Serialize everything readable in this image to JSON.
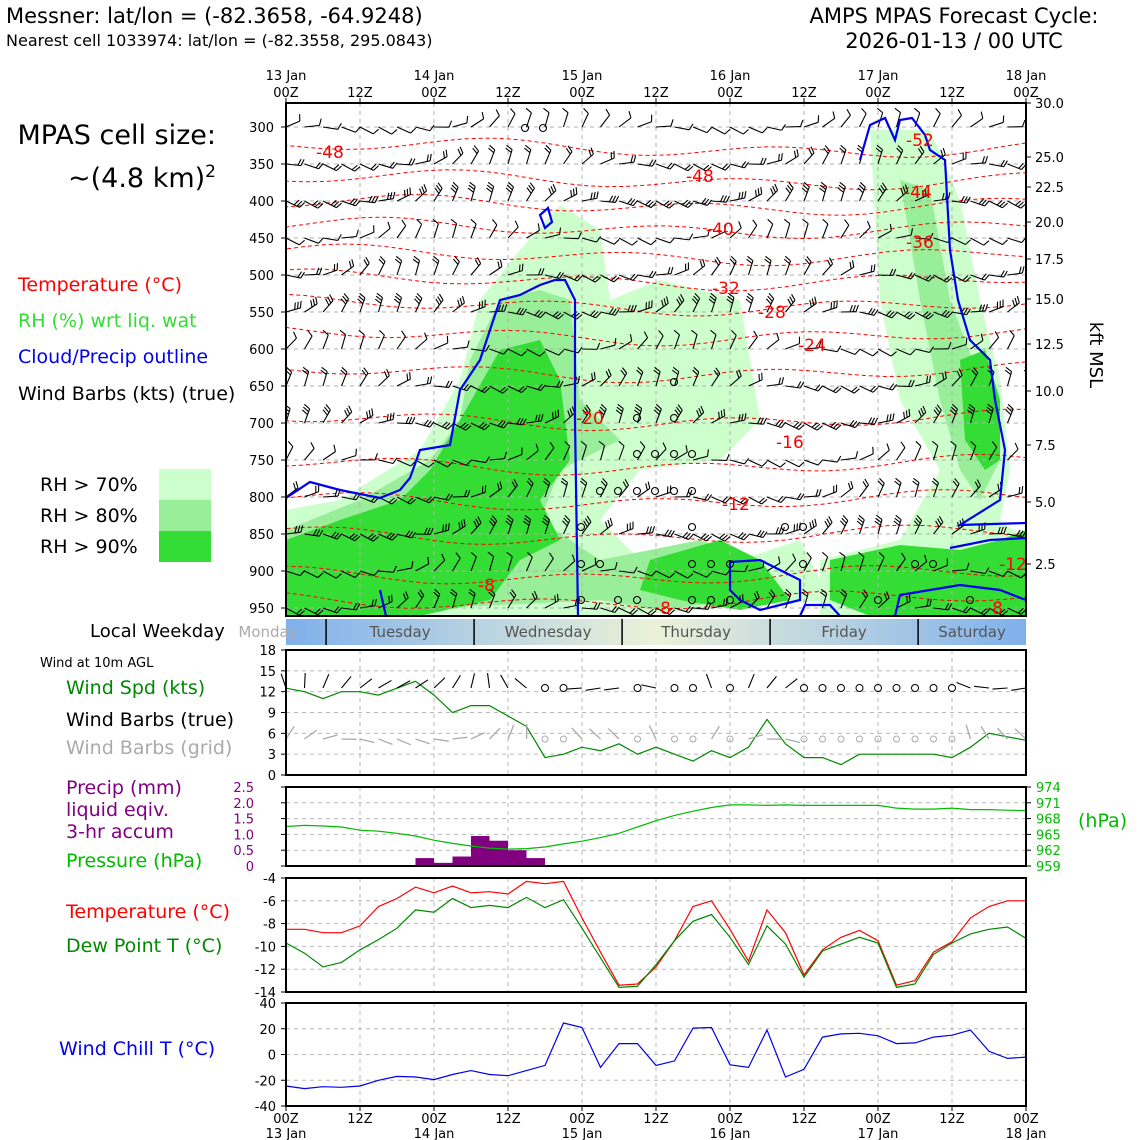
{
  "header": {
    "title_line1": "Messner: lat/lon = (-82.3658, -64.9248)",
    "title_line2": "Nearest cell 1033974: lat/lon = (-82.3558, 295.0843)",
    "cycle_line1": "AMPS MPAS Forecast Cycle:",
    "cycle_line2": "2026-01-13 / 00 UTC"
  },
  "cell_size": {
    "line1": "MPAS cell size:",
    "line2": "~(4.8 km)",
    "sup": "2"
  },
  "profile_legend": {
    "temperature": "Temperature (°C)",
    "rh": "RH (%) wrt liq. wat",
    "cloud": "Cloud/Precip outline",
    "wind": "Wind Barbs (kts) (true)",
    "rh70": "RH > 70%",
    "rh80": "RH > 80%",
    "rh90": "RH > 90%"
  },
  "colors": {
    "temperature": "#ff0000",
    "rh_label": "#33dd33",
    "cloud": "#0000ee",
    "rh70": "#ccffcc",
    "rh80": "#99ee99",
    "rh90": "#33dd33",
    "pressure": "#00bb00",
    "dewpoint": "#008800",
    "precip": "#800080",
    "windchill": "#0000ee",
    "windspd": "#008800",
    "gridbarb": "#aaaaaa"
  },
  "time_axis": {
    "top_days": [
      "13 Jan",
      "14 Jan",
      "15 Jan",
      "16 Jan",
      "17 Jan",
      "18 Jan"
    ],
    "hour_labels": [
      "00Z",
      "12Z",
      "00Z",
      "12Z",
      "00Z",
      "12Z",
      "00Z",
      "12Z",
      "00Z",
      "12Z",
      "00Z"
    ],
    "bottom_days": [
      "13 Jan",
      "14 Jan",
      "15 Jan",
      "16 Jan",
      "17 Jan",
      "18 Jan"
    ]
  },
  "weekday": {
    "label": "Local Weekday",
    "days": [
      "Monday",
      "Tuesday",
      "Wednesday",
      "Thursday",
      "Friday",
      "Saturday"
    ]
  },
  "chart_data": [
    {
      "type": "heatmap",
      "name": "profile",
      "y_pressure_ticks": [
        300,
        350,
        400,
        450,
        500,
        550,
        600,
        650,
        700,
        750,
        800,
        850,
        900,
        950
      ],
      "y_kft_ticks": [
        "30.0",
        "25.0",
        "22.5",
        "20.0",
        "17.5",
        "15.0",
        "12.5",
        "10.0",
        "7.5",
        "5.0",
        "2.5"
      ],
      "ylabel_right": "kft MSL",
      "isotherm_labels": [
        "-48",
        "-48",
        "-40",
        "-32",
        "-28",
        "-24",
        "-20",
        "-16",
        "-12",
        "-8",
        "-8",
        "-8",
        "-12",
        "-44",
        "-36",
        "-52"
      ],
      "isotherm_values": [
        -48,
        -44,
        -40,
        -36,
        -32,
        -28,
        -24,
        -20,
        -16,
        -12,
        -8
      ]
    },
    {
      "type": "line",
      "name": "wind10m",
      "title": "Wind at 10m AGL",
      "labels": {
        "speed": "Wind Spd (kts)",
        "barbs_true": "Wind Barbs (true)",
        "barbs_grid": "Wind Barbs (grid)"
      },
      "yticks": [
        0,
        3,
        6,
        9,
        12,
        15,
        18
      ],
      "ylim": [
        0,
        18
      ],
      "xlim_hours": [
        0,
        120
      ],
      "x_hours": [
        0,
        3,
        6,
        9,
        12,
        15,
        18,
        21,
        24,
        27,
        30,
        33,
        36,
        39,
        42,
        45,
        48,
        51,
        54,
        57,
        60,
        63,
        66,
        69,
        72,
        75,
        78,
        81,
        84,
        87,
        90,
        93,
        96,
        99,
        102,
        105,
        108,
        111,
        114,
        117,
        120
      ],
      "speed": [
        12.5,
        12.0,
        11.0,
        12.0,
        12.0,
        11.5,
        12.5,
        13.5,
        11.5,
        9.0,
        10.0,
        10.0,
        8.5,
        7.0,
        2.5,
        3.0,
        4.0,
        3.5,
        4.5,
        3.0,
        4.0,
        3.0,
        2.0,
        3.5,
        2.5,
        4.0,
        8.0,
        4.5,
        2.5,
        2.5,
        1.5,
        3.0,
        3.0,
        3.0,
        3.0,
        3.0,
        2.5,
        4.0,
        6.0,
        5.5,
        5.0
      ]
    },
    {
      "type": "bar",
      "name": "precip_pressure",
      "labels": {
        "precip": "Precip (mm)",
        "liquid": "liquid eqiv.",
        "accum": "3-hr accum",
        "pressure": "Pressure (hPa)",
        "hpa": "(hPa)"
      },
      "precip_yticks": [
        "2.5",
        "2.0",
        "1.5",
        "1.0",
        "0.5",
        "0"
      ],
      "pressure_yticks": [
        "974",
        "971",
        "968",
        "965",
        "962",
        "959"
      ],
      "precip_ylim": [
        0,
        2.5
      ],
      "pressure_ylim": [
        959,
        974
      ],
      "precip_bins": [
        {
          "start": 21,
          "end": 24,
          "value": 0.25
        },
        {
          "start": 24,
          "end": 27,
          "value": 0.1
        },
        {
          "start": 27,
          "end": 30,
          "value": 0.3
        },
        {
          "start": 30,
          "end": 33,
          "value": 0.95
        },
        {
          "start": 33,
          "end": 36,
          "value": 0.8
        },
        {
          "start": 36,
          "end": 39,
          "value": 0.5
        },
        {
          "start": 39,
          "end": 42,
          "value": 0.25
        }
      ],
      "x_hours": [
        0,
        3,
        6,
        9,
        12,
        15,
        18,
        21,
        24,
        27,
        30,
        33,
        36,
        39,
        42,
        45,
        48,
        51,
        54,
        57,
        60,
        63,
        66,
        69,
        72,
        75,
        78,
        81,
        84,
        87,
        90,
        93,
        96,
        99,
        102,
        105,
        108,
        111,
        114,
        117,
        120
      ],
      "pressure": [
        966.5,
        966.7,
        966.6,
        966.4,
        965.8,
        965.6,
        965.2,
        964.7,
        963.9,
        963.3,
        962.8,
        962.4,
        962.2,
        962.3,
        962.6,
        963.2,
        963.7,
        964.4,
        965.2,
        966.4,
        967.6,
        968.6,
        969.4,
        970.1,
        970.6,
        970.6,
        970.5,
        970.6,
        970.5,
        970.5,
        970.5,
        970.5,
        970.5,
        970.0,
        969.8,
        969.8,
        970.0,
        969.7,
        969.7,
        969.6,
        969.5
      ]
    },
    {
      "type": "line",
      "name": "temperature_dewpoint",
      "labels": {
        "temperature": "Temperature (°C)",
        "dewpoint": "Dew Point T (°C)"
      },
      "yticks": [
        -4,
        -6,
        -8,
        -10,
        -12,
        -14
      ],
      "ylim": [
        -14,
        -4
      ],
      "x_hours": [
        0,
        3,
        6,
        9,
        12,
        15,
        18,
        21,
        24,
        27,
        30,
        33,
        36,
        39,
        42,
        45,
        48,
        51,
        54,
        57,
        60,
        63,
        66,
        69,
        72,
        75,
        78,
        81,
        84,
        87,
        90,
        93,
        96,
        99,
        102,
        105,
        108,
        111,
        114,
        117,
        120
      ],
      "temperature": [
        -8.5,
        -8.5,
        -8.8,
        -8.8,
        -8.2,
        -6.5,
        -5.8,
        -4.8,
        -5.3,
        -4.7,
        -5.3,
        -5.2,
        -5.4,
        -4.3,
        -4.5,
        -4.3,
        -7.5,
        -10.5,
        -13.4,
        -13.3,
        -11.8,
        -9.5,
        -6.5,
        -6.0,
        -8.5,
        -11.3,
        -6.8,
        -8.8,
        -12.5,
        -10.3,
        -9.2,
        -8.6,
        -9.5,
        -13.4,
        -13.0,
        -10.5,
        -9.6,
        -7.5,
        -6.5,
        -6.0,
        -6.0
      ],
      "dewpoint": [
        -9.7,
        -10.6,
        -11.8,
        -11.4,
        -10.3,
        -9.4,
        -8.4,
        -6.8,
        -7.0,
        -5.8,
        -6.6,
        -6.4,
        -6.6,
        -5.7,
        -6.6,
        -5.9,
        -8.4,
        -11.0,
        -13.6,
        -13.5,
        -11.6,
        -9.5,
        -7.8,
        -7.2,
        -9.2,
        -11.6,
        -8.2,
        -9.8,
        -12.7,
        -10.4,
        -9.8,
        -9.2,
        -9.7,
        -13.6,
        -13.3,
        -10.7,
        -9.7,
        -8.9,
        -8.5,
        -8.3,
        -9.3
      ]
    },
    {
      "type": "line",
      "name": "windchill",
      "labels": {
        "windchill": "Wind Chill T (°C)"
      },
      "yticks": [
        40,
        20,
        0,
        -20,
        -40
      ],
      "ylim": [
        -40,
        40
      ],
      "x_hours": [
        0,
        3,
        6,
        9,
        12,
        15,
        18,
        21,
        24,
        27,
        30,
        33,
        36,
        39,
        42,
        45,
        48,
        51,
        54,
        57,
        60,
        63,
        66,
        69,
        72,
        75,
        78,
        81,
        84,
        87,
        90,
        93,
        96,
        99,
        102,
        105,
        108,
        111,
        114,
        117,
        120
      ],
      "windchill": [
        -24.5,
        -26.5,
        -25,
        -25.5,
        -24.5,
        -20,
        -17,
        -17.5,
        -19.5,
        -15.5,
        -12.5,
        -15.5,
        -16.5,
        -12.5,
        -8.5,
        24.5,
        21,
        -10,
        8.5,
        8.5,
        -8.5,
        -5,
        20.5,
        21,
        -8,
        -10,
        19,
        -17.5,
        -11.5,
        13.5,
        16,
        16.5,
        14.5,
        8.5,
        9,
        13.5,
        15,
        19,
        2.5,
        -3,
        -2
      ]
    }
  ]
}
